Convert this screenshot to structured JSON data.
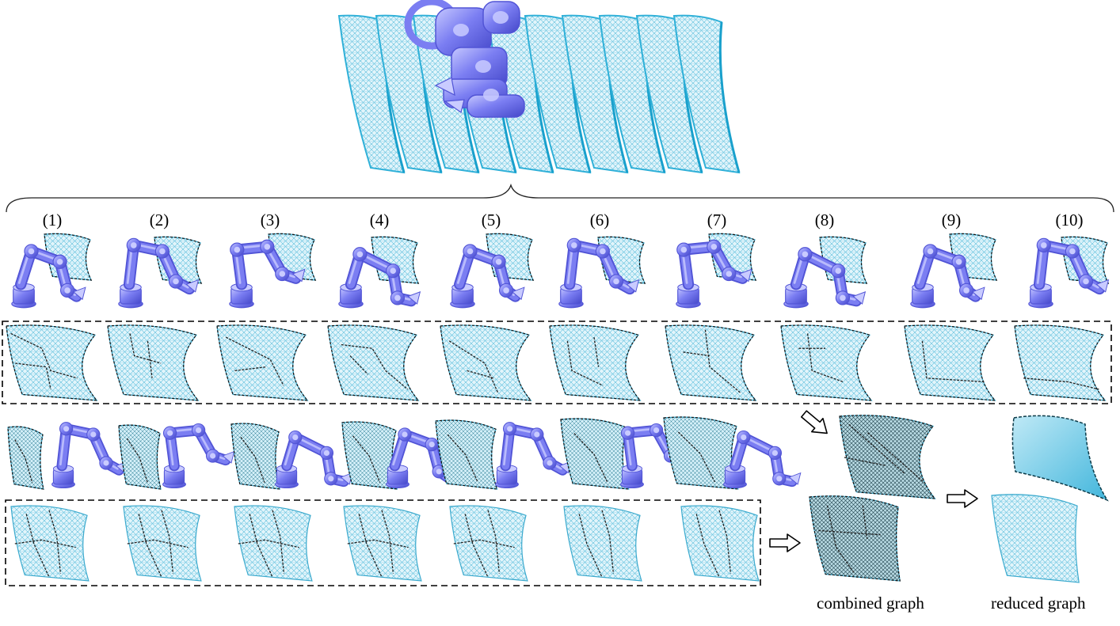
{
  "panels": [
    {
      "label": "(1)"
    },
    {
      "label": "(2)"
    },
    {
      "label": "(3)"
    },
    {
      "label": "(4)"
    },
    {
      "label": "(5)"
    },
    {
      "label": "(6)"
    },
    {
      "label": "(7)"
    },
    {
      "label": "(8)"
    },
    {
      "label": "(9)"
    },
    {
      "label": "(10)"
    }
  ],
  "captions": {
    "combined": "combined graph",
    "reduced": "reduced graph"
  },
  "colors": {
    "robot": "#7b7ef2",
    "robot_shade": "#5154d6",
    "robot_light": "#c9cbff",
    "mesh": "#59c6e4",
    "mesh_fill": "#d7f1fa",
    "mesh_dark": "#1e4d5e",
    "outline": "#000000"
  },
  "icons": [
    "robot-arm-icon",
    "mesh-surface-icon",
    "arrow-right-icon"
  ]
}
